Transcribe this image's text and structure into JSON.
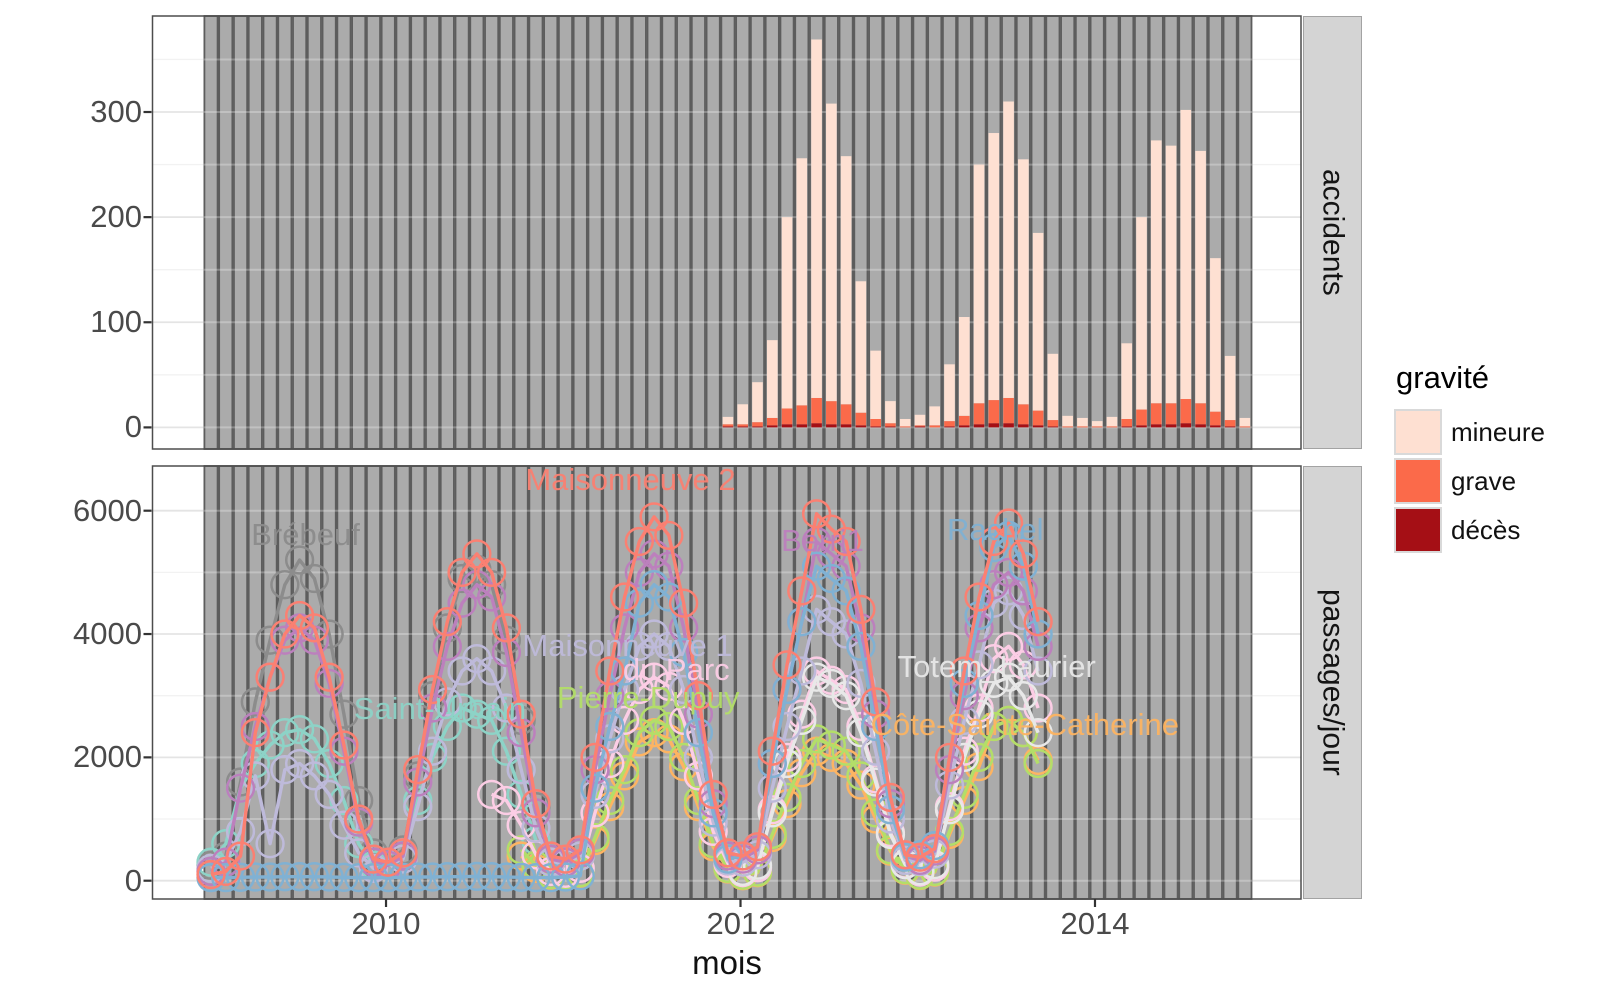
{
  "x_axis": {
    "title": "mois",
    "ticks": [
      {
        "label": "2010",
        "month_index": 11.85
      },
      {
        "label": "2012",
        "month_index": 35.85
      },
      {
        "label": "2014",
        "month_index": 59.85
      }
    ]
  },
  "facets": [
    {
      "strip": "accidents",
      "y_tick_labels": [
        "0",
        "100",
        "200",
        "300"
      ],
      "y_tick_values": [
        0,
        100,
        200,
        300
      ]
    },
    {
      "strip": "passages/jour",
      "y_tick_labels": [
        "0",
        "2000",
        "4000",
        "6000"
      ],
      "y_tick_values": [
        0,
        2000,
        4000,
        6000
      ]
    }
  ],
  "legend": {
    "title": "gravité",
    "items": [
      {
        "label": "mineure",
        "color": "#fee0d2"
      },
      {
        "label": "grave",
        "color": "#fb6a4a"
      },
      {
        "label": "décès",
        "color": "#a50f15"
      }
    ]
  },
  "background_months": {
    "start": "2009-01",
    "count": 71,
    "bar_fill": "#ababab",
    "bar_stroke": "#5d5d5d"
  },
  "chart_data": [
    {
      "type": "bar",
      "panel": "accidents",
      "stacked": true,
      "x_start_month": "2011-12",
      "x_start_index": 35,
      "ylim": [
        0,
        390
      ],
      "grid_major": [
        0,
        100,
        200,
        300
      ],
      "grid_minor": [
        50,
        150,
        250,
        350
      ],
      "legend_position": "right",
      "series": [
        {
          "name": "décès",
          "color": "#a50f15",
          "values": [
            1,
            1,
            1,
            2,
            3,
            3,
            4,
            3,
            3,
            2,
            1,
            1,
            0,
            1,
            0,
            1,
            2,
            3,
            4,
            4,
            3,
            2,
            1,
            0,
            0,
            0,
            0,
            1,
            2,
            3,
            3,
            4,
            3,
            2,
            1,
            0
          ]
        },
        {
          "name": "grave",
          "color": "#fb6a4a",
          "values": [
            2,
            2,
            4,
            7,
            15,
            18,
            24,
            22,
            19,
            12,
            7,
            3,
            1,
            1,
            2,
            5,
            9,
            20,
            22,
            24,
            19,
            14,
            6,
            1,
            1,
            1,
            1,
            7,
            15,
            20,
            20,
            23,
            20,
            13,
            6,
            1
          ]
        },
        {
          "name": "mineure",
          "color": "#fee0d2",
          "values": [
            7,
            19,
            38,
            74,
            182,
            235,
            341,
            283,
            236,
            125,
            65,
            21,
            7,
            10,
            18,
            54,
            94,
            227,
            254,
            282,
            233,
            169,
            63,
            10,
            8,
            5,
            9,
            72,
            183,
            250,
            245,
            275,
            240,
            146,
            61,
            8
          ]
        }
      ]
    },
    {
      "type": "line",
      "panel": "passages/jour",
      "x_start_month": "2009-01",
      "ylim": [
        0,
        6000
      ],
      "grid_major": [
        0,
        2000,
        4000,
        6000
      ],
      "grid_minor": [
        1000,
        3000,
        5000
      ],
      "stations": [
        {
          "name": "Brébeuf",
          "label": "Brébeuf",
          "color": "#8c8c8c",
          "label_month": 6.4,
          "label_value": 5605,
          "values": [
            250,
            400,
            1600,
            2900,
            3900,
            4800,
            5200,
            4900,
            4000,
            2700,
            1300,
            450,
            300,
            500,
            1700,
            3000,
            4100,
            4900,
            5050,
            4800,
            3900,
            2600,
            1200,
            null,
            null,
            null,
            null,
            null,
            null,
            null,
            null,
            null,
            null,
            null,
            null,
            null,
            null,
            null,
            null,
            null,
            null,
            null,
            null,
            null,
            null,
            null,
            null,
            null,
            null,
            null,
            null,
            null,
            null,
            null,
            null,
            null,
            null
          ]
        },
        {
          "name": "Saint-Urbain",
          "label": "Saint-Urbain",
          "color": "#8dd3c7",
          "label_month": 15.5,
          "label_value": 2785,
          "values": [
            300,
            600,
            1500,
            1900,
            2200,
            2400,
            2450,
            2300,
            1900,
            1300,
            600,
            250,
            250,
            450,
            1300,
            2000,
            2500,
            2800,
            2700,
            2600,
            2100,
            1400,
            650,
            null,
            null,
            null,
            null,
            null,
            null,
            null,
            null,
            null,
            null,
            null,
            null,
            null,
            null,
            null,
            null,
            null,
            null,
            null,
            null,
            null,
            null,
            null,
            null,
            null,
            null,
            null,
            null,
            null,
            null,
            null,
            null,
            null,
            null
          ]
        },
        {
          "name": "Côte-Sainte-Catherine",
          "label": "Côte-Sainte-Catherine",
          "color": "#fdb462",
          "label_month": 55.1,
          "label_value": 2525,
          "values": [
            null,
            null,
            null,
            null,
            null,
            null,
            null,
            null,
            null,
            null,
            null,
            null,
            null,
            null,
            null,
            null,
            null,
            null,
            null,
            null,
            null,
            400,
            200,
            80,
            70,
            120,
            650,
            1200,
            1700,
            2250,
            2400,
            2300,
            1850,
            1200,
            550,
            190,
            80,
            130,
            700,
            1250,
            1750,
            2100,
            2000,
            1900,
            1550,
            1000,
            480,
            170,
            85,
            140,
            750,
            1300,
            1850,
            2500,
            2600,
            2400,
            1950
          ]
        },
        {
          "name": "Pierre-Dupuy",
          "label": "Pierre-Dupuy",
          "color": "#b3de69",
          "label_month": 29.6,
          "label_value": 2960,
          "values": [
            null,
            null,
            null,
            null,
            null,
            null,
            null,
            null,
            null,
            null,
            null,
            null,
            null,
            null,
            null,
            null,
            null,
            null,
            null,
            null,
            null,
            500,
            250,
            100,
            80,
            130,
            700,
            1300,
            1800,
            2400,
            2600,
            2500,
            2000,
            1300,
            600,
            200,
            90,
            140,
            750,
            1350,
            1900,
            2300,
            2200,
            2100,
            1700,
            1100,
            500,
            180,
            90,
            150,
            800,
            1400,
            2000,
            2500,
            2600,
            2400,
            1900
          ]
        },
        {
          "name": "du Parc",
          "label": "du Parc",
          "color": "#fccde5",
          "label_month": 31.5,
          "label_value": 3415,
          "values": [
            null,
            null,
            null,
            null,
            null,
            null,
            null,
            null,
            null,
            null,
            null,
            null,
            null,
            null,
            null,
            null,
            null,
            null,
            null,
            1400,
            1300,
            900,
            420,
            150,
            120,
            200,
            1100,
            1900,
            2600,
            3100,
            3300,
            3150,
            2600,
            1700,
            800,
            280,
            130,
            210,
            1150,
            2000,
            2700,
            3400,
            3250,
            3100,
            2500,
            1650,
            780,
            270,
            140,
            220,
            1200,
            2100,
            2800,
            3600,
            3800,
            3500,
            2800
          ]
        },
        {
          "name": "Totem_Laurier",
          "label": "Totem_Laurier",
          "color": "#e8e8e8",
          "label_month": 53.2,
          "label_value": 3465,
          "values": [
            null,
            null,
            null,
            null,
            null,
            null,
            null,
            null,
            null,
            null,
            null,
            null,
            null,
            null,
            null,
            null,
            null,
            null,
            null,
            null,
            null,
            null,
            null,
            null,
            null,
            null,
            null,
            null,
            null,
            null,
            null,
            null,
            null,
            null,
            null,
            null,
            150,
            250,
            1100,
            1900,
            2600,
            3300,
            3200,
            3000,
            2400,
            1600,
            750,
            260,
            160,
            260,
            1150,
            2000,
            2700,
            3200,
            3300,
            3000,
            2400
          ]
        },
        {
          "name": "Maisonneuve 1",
          "label": "Maisonneuve 1",
          "color": "#bebada",
          "label_month": 28.2,
          "label_value": 3805,
          "values": [
            200,
            300,
            800,
            1700,
            600,
            1800,
            1900,
            1700,
            1400,
            900,
            450,
            200,
            250,
            350,
            1200,
            2100,
            2900,
            3400,
            3600,
            3400,
            2800,
            1800,
            850,
            300,
            280,
            400,
            1400,
            2300,
            3100,
            3800,
            4000,
            3800,
            3100,
            2000,
            950,
            320,
            300,
            420,
            1500,
            2500,
            3400,
            4400,
            4200,
            4000,
            3200,
            2100,
            1000,
            330,
            310,
            430,
            1550,
            2600,
            3500,
            4500,
            4700,
            4300,
            3400
          ]
        },
        {
          "name": "Berri1",
          "label": "Berri1",
          "color": "#bc80bd",
          "label_month": 41.4,
          "label_value": 5510,
          "values": [
            150,
            300,
            1500,
            2500,
            3300,
            3900,
            4100,
            3900,
            3200,
            2100,
            950,
            300,
            250,
            400,
            1600,
            2800,
            3800,
            4500,
            4800,
            4600,
            3700,
            2400,
            1100,
            350,
            300,
            450,
            1800,
            3000,
            4100,
            5000,
            5300,
            5100,
            4100,
            2700,
            1250,
            400,
            350,
            500,
            1900,
            3100,
            4200,
            5500,
            5300,
            5100,
            4100,
            2700,
            1250,
            400,
            330,
            480,
            1800,
            3000,
            4100,
            4800,
            5000,
            4700,
            3800
          ]
        },
        {
          "name": "Rachel",
          "label": "Rachel",
          "color": "#80b1d3",
          "label_month": 53.1,
          "label_value": 5690,
          "values": [
            50,
            50,
            55,
            60,
            60,
            65,
            65,
            65,
            60,
            55,
            50,
            50,
            50,
            55,
            60,
            60,
            65,
            65,
            70,
            65,
            60,
            55,
            50,
            50,
            60,
            80,
            1500,
            2500,
            3400,
            4500,
            4800,
            4600,
            3700,
            2400,
            1100,
            350,
            400,
            550,
            1900,
            3100,
            4200,
            5100,
            4900,
            4700,
            3800,
            2500,
            1150,
            380,
            420,
            570,
            2000,
            3200,
            4300,
            5400,
            5600,
            5100,
            4000
          ]
        },
        {
          "name": "Maisonneuve 2",
          "label": "Maisonneuve 2",
          "color": "#fb8072",
          "label_month": 28.4,
          "label_value": 6500,
          "values": [
            100,
            150,
            400,
            2400,
            3300,
            4000,
            4300,
            4100,
            3300,
            2200,
            1000,
            350,
            300,
            450,
            1800,
            3100,
            4200,
            5000,
            5300,
            5000,
            4100,
            2700,
            1250,
            400,
            350,
            500,
            2000,
            3400,
            4600,
            5500,
            5900,
            5600,
            4500,
            3000,
            1400,
            450,
            400,
            550,
            2100,
            3500,
            4700,
            5950,
            5700,
            5500,
            4400,
            2900,
            1350,
            420,
            380,
            520,
            2000,
            3400,
            4600,
            5500,
            5800,
            5300,
            4200
          ]
        }
      ]
    }
  ]
}
